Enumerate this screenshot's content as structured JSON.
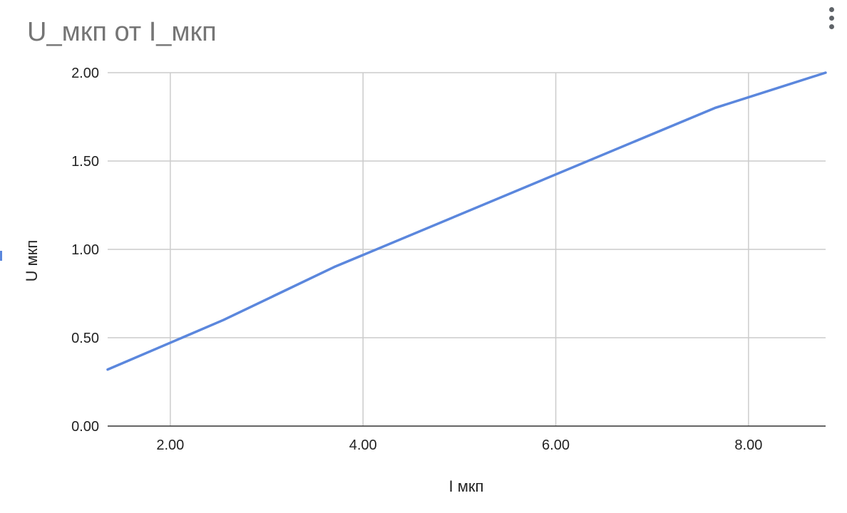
{
  "chart_data": {
    "type": "line",
    "title": "U_мкп от I_мкп",
    "xlabel": "I мкп",
    "ylabel": "U мкп",
    "xlim": [
      1.35,
      8.8
    ],
    "ylim": [
      0,
      2.0
    ],
    "x_ticks": [
      "2.00",
      "4.00",
      "6.00",
      "8.00"
    ],
    "y_ticks": [
      "0.00",
      "0.50",
      "1.00",
      "1.50",
      "2.00"
    ],
    "grid": true,
    "series": [
      {
        "color": "#5b87dd",
        "x": [
          1.35,
          2.55,
          3.7,
          7.65,
          8.8
        ],
        "y": [
          0.32,
          0.6,
          0.9,
          1.8,
          2.0
        ]
      }
    ]
  }
}
